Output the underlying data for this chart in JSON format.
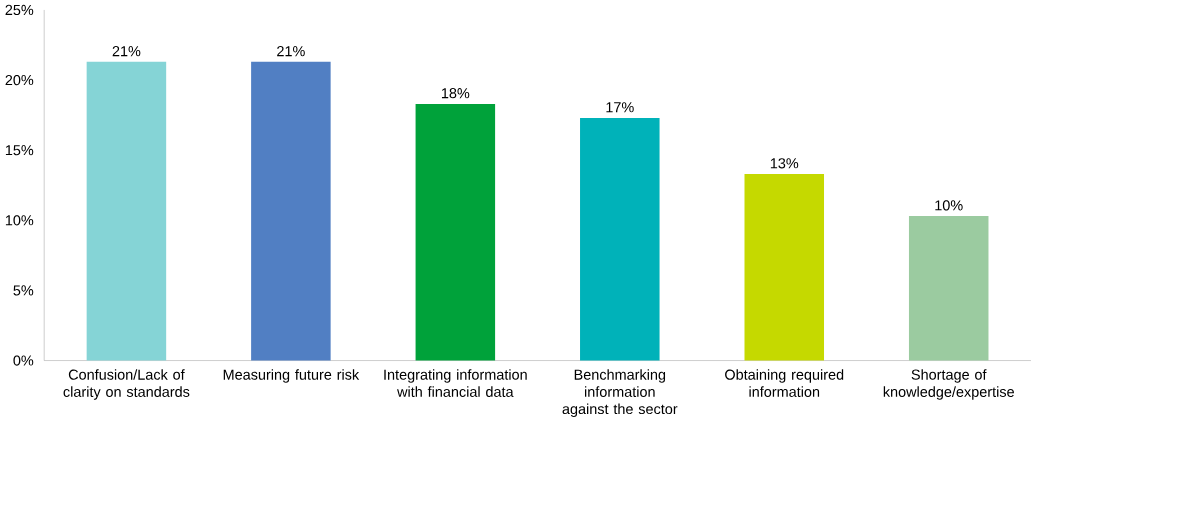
{
  "chart_data": {
    "type": "bar",
    "categories": [
      "Confusion/Lack of clarity on standards",
      "Measuring future risk",
      "Integrating information with financial data",
      "Benchmarking information against the sector",
      "Obtaining required information",
      "Shortage of knowledge/expertise"
    ],
    "values": [
      21.3,
      21.3,
      18.3,
      17.3,
      13.3,
      10.3
    ],
    "value_labels": [
      "21%",
      "21%",
      "18%",
      "17%",
      "13%",
      "10%"
    ],
    "colors": [
      "#85d4d6",
      "#517fc3",
      "#00a23a",
      "#00b2b9",
      "#c5d900",
      "#9bcba0"
    ],
    "ylim": [
      0,
      25
    ],
    "yticks": [
      {
        "value": 0,
        "label": "0%"
      },
      {
        "value": 5,
        "label": "5%"
      },
      {
        "value": 10,
        "label": "10%"
      },
      {
        "value": 15,
        "label": "15%"
      },
      {
        "value": 20,
        "label": "20%"
      },
      {
        "value": 25,
        "label": "25%"
      }
    ],
    "grid": false
  }
}
